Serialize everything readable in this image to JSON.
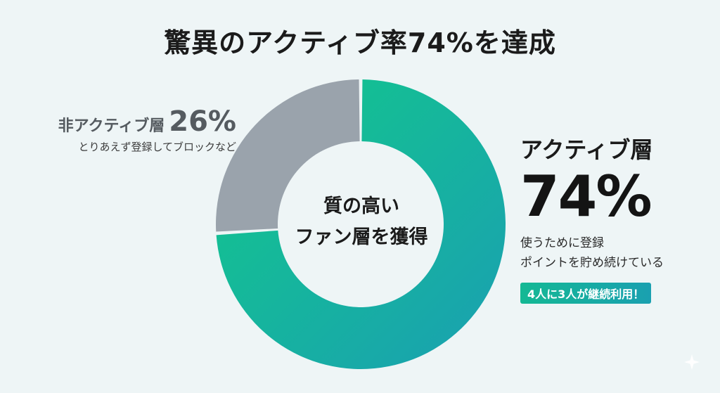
{
  "title": "驚異のアクティブ率74%を達成",
  "center_label": [
    "質の高い",
    "ファン層を獲得"
  ],
  "inactive": {
    "label": "非アクティブ層",
    "percent_text": "26%",
    "description": "とりあえず登録してブロックなど"
  },
  "active": {
    "label": "アクティブ層",
    "percent_text": "74%",
    "description": [
      "使うために登録",
      "ポイントを貯め続けている"
    ],
    "badge": "4人に3人が継続利用！"
  },
  "colors": {
    "active_start": "#12c98a",
    "active_end": "#1a9fb2",
    "inactive": "#9aa3ac",
    "background": "#eef5f6"
  },
  "chart_data": {
    "type": "pie",
    "donut": true,
    "title": "驚異のアクティブ率74%を達成",
    "categories": [
      "アクティブ層",
      "非アクティブ層"
    ],
    "values": [
      74,
      26
    ],
    "unit": "%"
  }
}
